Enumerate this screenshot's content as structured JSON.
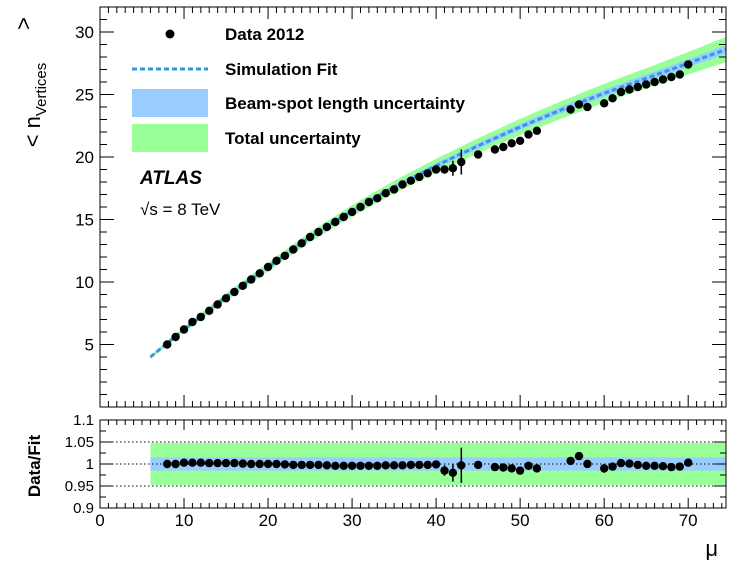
{
  "chart_data": [
    {
      "type": "scatter",
      "panel": "main",
      "xlabel": "μ",
      "ylabel_base": "< n",
      "ylabel_sub": "Vertices",
      "ylabel_hat": ">",
      "xlim": [
        0,
        74.5
      ],
      "ylim": [
        0,
        32
      ],
      "x_ticks": [
        0,
        10,
        20,
        30,
        40,
        50,
        60,
        70
      ],
      "y_ticks": [
        5,
        10,
        15,
        20,
        25,
        30
      ],
      "legend": [
        {
          "label": "Data 2012",
          "kind": "marker",
          "color": "#000000"
        },
        {
          "label": "Simulation Fit",
          "kind": "dashed-line",
          "color": "#3399dd"
        },
        {
          "label": "Beam-spot length uncertainty",
          "kind": "band",
          "color": "#99ccff"
        },
        {
          "label": "Total uncertainty",
          "kind": "band",
          "color": "#99ff99"
        }
      ],
      "experiment": "ATLAS",
      "energy_label": "√s = 8 TeV",
      "fit_curve": {
        "x": [
          6,
          10,
          15,
          20,
          25,
          30,
          35,
          40,
          45,
          50,
          55,
          60,
          65,
          70,
          74.5
        ],
        "y": [
          4.0,
          6.2,
          8.8,
          11.2,
          13.6,
          15.7,
          17.6,
          19.3,
          20.9,
          22.4,
          23.8,
          25.1,
          26.3,
          27.5,
          28.6
        ]
      },
      "total_band_halfwidth": [
        0.15,
        0.2,
        0.3,
        0.35,
        0.4,
        0.45,
        0.5,
        0.55,
        0.6,
        0.65,
        0.7,
        0.75,
        0.8,
        0.9,
        1.0
      ],
      "beamspot_band_halfwidth": [
        0.05,
        0.07,
        0.1,
        0.12,
        0.14,
        0.16,
        0.18,
        0.2,
        0.22,
        0.24,
        0.26,
        0.28,
        0.3,
        0.32,
        0.34
      ],
      "data": {
        "x": [
          8,
          9,
          10,
          11,
          12,
          13,
          14,
          15,
          16,
          17,
          18,
          19,
          20,
          21,
          22,
          23,
          24,
          25,
          26,
          27,
          28,
          29,
          30,
          31,
          32,
          33,
          34,
          35,
          36,
          37,
          38,
          39,
          40,
          41,
          42,
          43,
          45,
          47,
          48,
          49,
          50,
          51,
          52,
          56,
          57,
          58,
          60,
          61,
          62,
          63,
          64,
          65,
          66,
          67,
          68,
          69,
          70
        ],
        "y": [
          5.0,
          5.6,
          6.2,
          6.8,
          7.2,
          7.7,
          8.2,
          8.7,
          9.2,
          9.7,
          10.2,
          10.7,
          11.2,
          11.7,
          12.1,
          12.6,
          13.1,
          13.6,
          14.0,
          14.4,
          14.8,
          15.2,
          15.6,
          16.0,
          16.4,
          16.7,
          17.1,
          17.4,
          17.8,
          18.1,
          18.4,
          18.7,
          19.0,
          19.0,
          19.1,
          19.6,
          20.2,
          20.6,
          20.8,
          21.1,
          21.3,
          21.8,
          22.1,
          23.8,
          24.2,
          24.0,
          24.3,
          24.7,
          25.2,
          25.4,
          25.6,
          25.8,
          26.0,
          26.2,
          26.4,
          26.6,
          27.4
        ],
        "yerr": [
          0.05,
          0.05,
          0.05,
          0.05,
          0.05,
          0.05,
          0.05,
          0.05,
          0.05,
          0.05,
          0.05,
          0.05,
          0.05,
          0.05,
          0.05,
          0.05,
          0.05,
          0.05,
          0.05,
          0.05,
          0.05,
          0.05,
          0.05,
          0.05,
          0.05,
          0.05,
          0.05,
          0.05,
          0.05,
          0.05,
          0.05,
          0.05,
          0.1,
          0.3,
          0.6,
          1.0,
          0.1,
          0.1,
          0.1,
          0.1,
          0.1,
          0.1,
          0.1,
          0.2,
          0.2,
          0.2,
          0.2,
          0.1,
          0.1,
          0.1,
          0.1,
          0.1,
          0.1,
          0.1,
          0.1,
          0.1,
          0.2
        ]
      }
    },
    {
      "type": "scatter",
      "panel": "ratio",
      "ylabel": "Data/Fit",
      "xlim": [
        0,
        74.5
      ],
      "ylim": [
        0.9,
        1.1
      ],
      "x_ticks": [
        0,
        10,
        20,
        30,
        40,
        50,
        60,
        70
      ],
      "y_ticks": [
        0.9,
        0.95,
        1,
        1.05,
        1.1
      ],
      "y_tick_labels": [
        "0.9",
        "0.95",
        "1",
        "1.05",
        "1.1"
      ],
      "reference_lines": [
        0.95,
        1,
        1.05
      ],
      "band_xrange": [
        6,
        74.5
      ],
      "total_band": [
        0.952,
        1.048
      ],
      "beamspot_band": [
        0.985,
        1.015
      ],
      "data": {
        "x": [
          8,
          9,
          10,
          11,
          12,
          13,
          14,
          15,
          16,
          17,
          18,
          19,
          20,
          21,
          22,
          23,
          24,
          25,
          26,
          27,
          28,
          29,
          30,
          31,
          32,
          33,
          34,
          35,
          36,
          37,
          38,
          39,
          40,
          41,
          42,
          43,
          45,
          47,
          48,
          49,
          50,
          51,
          52,
          56,
          57,
          58,
          60,
          61,
          62,
          63,
          64,
          65,
          66,
          67,
          68,
          69,
          70
        ],
        "y": [
          1.0,
          1.0,
          1.003,
          1.003,
          1.003,
          1.002,
          1.002,
          1.002,
          1.002,
          1.001,
          1.0,
          1.0,
          1.0,
          1.0,
          0.999,
          0.998,
          0.998,
          0.998,
          0.998,
          0.997,
          0.996,
          0.996,
          0.996,
          0.996,
          0.996,
          0.996,
          0.997,
          0.997,
          0.997,
          0.998,
          0.998,
          0.998,
          0.999,
          0.985,
          0.98,
          0.997,
          0.998,
          0.993,
          0.992,
          0.99,
          0.985,
          0.996,
          0.99,
          1.007,
          1.018,
          1.0,
          0.99,
          0.994,
          1.002,
          1.001,
          0.998,
          0.996,
          0.996,
          0.995,
          0.993,
          0.994,
          1.003
        ],
        "yerr": [
          0.002,
          0.002,
          0.002,
          0.002,
          0.002,
          0.002,
          0.002,
          0.002,
          0.002,
          0.002,
          0.002,
          0.002,
          0.002,
          0.002,
          0.002,
          0.002,
          0.002,
          0.002,
          0.002,
          0.002,
          0.002,
          0.002,
          0.002,
          0.002,
          0.002,
          0.002,
          0.002,
          0.002,
          0.002,
          0.002,
          0.002,
          0.002,
          0.004,
          0.012,
          0.02,
          0.04,
          0.004,
          0.004,
          0.004,
          0.004,
          0.004,
          0.004,
          0.004,
          0.008,
          0.008,
          0.008,
          0.01,
          0.004,
          0.004,
          0.004,
          0.004,
          0.004,
          0.004,
          0.004,
          0.004,
          0.004,
          0.008
        ]
      }
    }
  ]
}
